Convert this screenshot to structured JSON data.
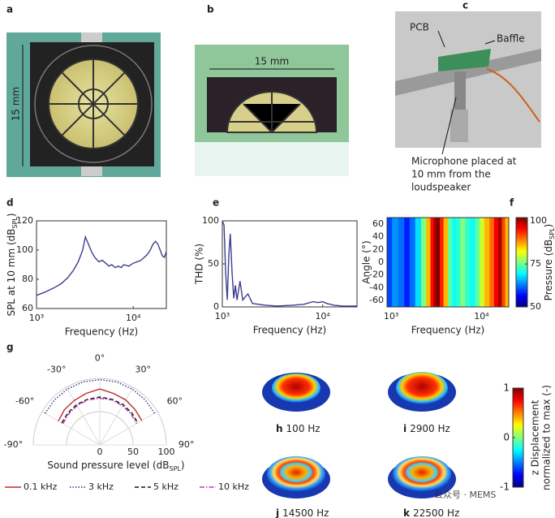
{
  "figure": {
    "panel_a": {
      "label": "a",
      "scale": "15 mm"
    },
    "panel_b": {
      "label": "b",
      "scale": "15 mm"
    },
    "panel_c": {
      "label": "c",
      "annotations": [
        "PCB",
        "Baffle"
      ],
      "caption": [
        "Microphone placed at",
        "10 mm from the",
        "loudspeaker"
      ]
    },
    "simulation": {
      "panels": [
        {
          "letter": "h",
          "label": "100 Hz"
        },
        {
          "letter": "i",
          "label": "2900 Hz"
        },
        {
          "letter": "j",
          "label": "14500 Hz"
        },
        {
          "letter": "k",
          "label": "22500 Hz"
        }
      ],
      "colorbar": {
        "label": [
          "z Displacement",
          "normalized to max (-)"
        ],
        "lim": [
          -1,
          1
        ],
        "ticks": [
          1,
          0,
          -1
        ]
      }
    },
    "watermark": "公众号 · MEMS"
  },
  "chart_data": [
    {
      "type": "line",
      "panel": "d",
      "ylabel": {
        "text": "SPL at 10 mm (dB",
        "sub": "SPL",
        "end": ")"
      },
      "xlabel": "Frequency (Hz)",
      "x": [
        1000,
        1200,
        1500,
        1800,
        2100,
        2400,
        2700,
        3000,
        3200,
        3400,
        3700,
        4000,
        4400,
        4800,
        5200,
        5600,
        6000,
        6500,
        7000,
        7500,
        8000,
        9000,
        10000,
        11000,
        12000,
        13000,
        14000,
        15000,
        16000,
        17000,
        18000,
        19000,
        20000,
        21000,
        22000
      ],
      "values": [
        69,
        71,
        74,
        77,
        81,
        86,
        92,
        100,
        109,
        105,
        99,
        95,
        92,
        93,
        91,
        89,
        90,
        88,
        89,
        88,
        90,
        89,
        91,
        92,
        93,
        95,
        97,
        100,
        104,
        106,
        104,
        100,
        96,
        95,
        99
      ],
      "color": "#3a3f8f",
      "xscale": "log",
      "xlim": [
        1000,
        22000
      ],
      "xticks": [
        {
          "value": 1000,
          "label": "10³"
        },
        {
          "value": 10000,
          "label": "10⁴"
        }
      ],
      "ylim": [
        60,
        120
      ],
      "yticks": [
        60,
        80,
        100,
        120
      ]
    },
    {
      "type": "line",
      "panel": "e",
      "ylabel": "THD (%)",
      "xlabel": "Frequency (Hz)",
      "x": [
        1000,
        1040,
        1080,
        1120,
        1160,
        1200,
        1250,
        1300,
        1350,
        1400,
        1500,
        1600,
        1700,
        1800,
        2000,
        2300,
        2700,
        3500,
        5000,
        6500,
        8000,
        9000,
        10000,
        11000,
        13000,
        16000,
        22000
      ],
      "values": [
        100,
        95,
        40,
        8,
        60,
        85,
        40,
        10,
        25,
        8,
        30,
        8,
        12,
        15,
        4,
        3,
        2,
        1,
        2,
        3,
        6,
        5,
        6,
        4,
        2,
        1,
        1
      ],
      "color": "#3a3f8f",
      "xscale": "log",
      "xlim": [
        1000,
        22000
      ],
      "xticks": [
        {
          "value": 1000,
          "label": "10³"
        },
        {
          "value": 10000,
          "label": "10⁴"
        }
      ],
      "ylim": [
        0,
        100
      ],
      "yticks": [
        0,
        50,
        100
      ]
    },
    {
      "type": "heatmap",
      "panel": "f",
      "ylabel": "Angle (°)",
      "xlabel": "Frequency (Hz)",
      "x": [
        950,
        1100,
        1300,
        1500,
        1700,
        2000,
        2300,
        2600,
        2850,
        3050,
        3300,
        3600,
        4000,
        4500,
        5000,
        5500,
        6200,
        7000,
        8000,
        9000,
        10000,
        11500,
        13000,
        14500,
        16000,
        17500,
        19000
      ],
      "values": [
        60,
        64,
        62,
        58,
        62,
        68,
        76,
        86,
        95,
        100,
        102,
        94,
        86,
        74,
        70,
        72,
        76,
        72,
        70,
        74,
        80,
        86,
        90,
        96,
        100,
        92,
        86
      ],
      "xscale": "log",
      "xlim": [
        900,
        20000
      ],
      "xticks": [
        {
          "value": 1000,
          "label": "10³"
        },
        {
          "value": 10000,
          "label": "10⁴"
        }
      ],
      "ylim": [
        -70,
        70
      ],
      "yticks": [
        -60,
        -40,
        -20,
        0,
        20,
        40,
        60
      ],
      "colorbar": {
        "label": {
          "text": "Pressure (dB",
          "sub": "SPL",
          "end": ")"
        },
        "lim": [
          50,
          102
        ],
        "ticks": [
          50,
          75,
          100
        ]
      }
    },
    {
      "type": "polar",
      "panel": "g",
      "xlabel": {
        "text": "Sound pressure level (dB",
        "sub": "SPL",
        "end": ")"
      },
      "angles": [
        -60,
        -45,
        -30,
        -15,
        0,
        15,
        30,
        45,
        60
      ],
      "rlim": [
        0,
        100
      ],
      "rticks": [
        0,
        50,
        100
      ],
      "angleticks": [
        {
          "value": -90,
          "label": "-90°"
        },
        {
          "value": -60,
          "label": "-60°"
        },
        {
          "value": -30,
          "label": "-30°"
        },
        {
          "value": 0,
          "label": "0°"
        },
        {
          "value": 30,
          "label": "30°"
        },
        {
          "value": 60,
          "label": "60°"
        },
        {
          "value": 90,
          "label": "90°"
        }
      ],
      "series": [
        {
          "name": "0.1 kHz",
          "color": "#c0282d",
          "style": "solid",
          "values": [
            72,
            75,
            77,
            80,
            84,
            80,
            78,
            75,
            73
          ]
        },
        {
          "name": "3 kHz",
          "color": "#2b2f8c",
          "style": "dotted",
          "values": [
            95,
            96,
            97,
            98,
            98,
            98,
            97,
            96,
            95
          ]
        },
        {
          "name": "5 kHz",
          "color": "#111111",
          "style": "dashed",
          "values": [
            66,
            68,
            70,
            71,
            72,
            71,
            70,
            68,
            66
          ]
        },
        {
          "name": "10 kHz",
          "color": "#c03ab8",
          "style": "dashdot",
          "values": [
            64,
            66,
            68,
            70,
            70,
            70,
            68,
            66,
            64
          ]
        }
      ]
    }
  ]
}
